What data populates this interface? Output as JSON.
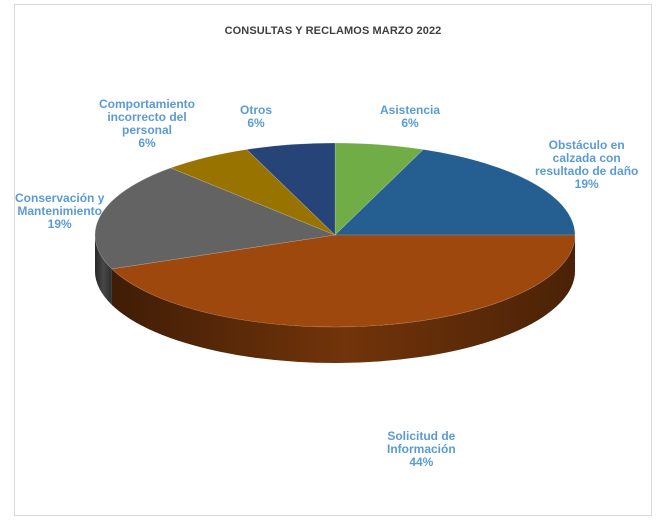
{
  "chart_data": {
    "type": "pie",
    "title": "CONSULTAS Y RECLAMOS MARZO 2022",
    "slices": [
      {
        "lines": [
          "Asistencia",
          "6%"
        ],
        "value": 6,
        "color": "#70ad47"
      },
      {
        "lines": [
          "Obstáculo en",
          "calzada con",
          "resultado de daño",
          "19%"
        ],
        "value": 19,
        "color": "#255e91"
      },
      {
        "lines": [
          "Solicitud de",
          "Información",
          "44%"
        ],
        "value": 44,
        "color": "#9e480e"
      },
      {
        "lines": [
          "Conservación y",
          "Mantenimiento",
          "19%"
        ],
        "value": 19,
        "color": "#636363"
      },
      {
        "lines": [
          "Comportamiento",
          "incorrecto del",
          "personal",
          "6%"
        ],
        "value": 6,
        "color": "#997300"
      },
      {
        "lines": [
          "Otros",
          "6%"
        ],
        "value": 6,
        "color": "#264478"
      }
    ],
    "label_color": "#5b9bd5",
    "style": "3d-pie"
  }
}
